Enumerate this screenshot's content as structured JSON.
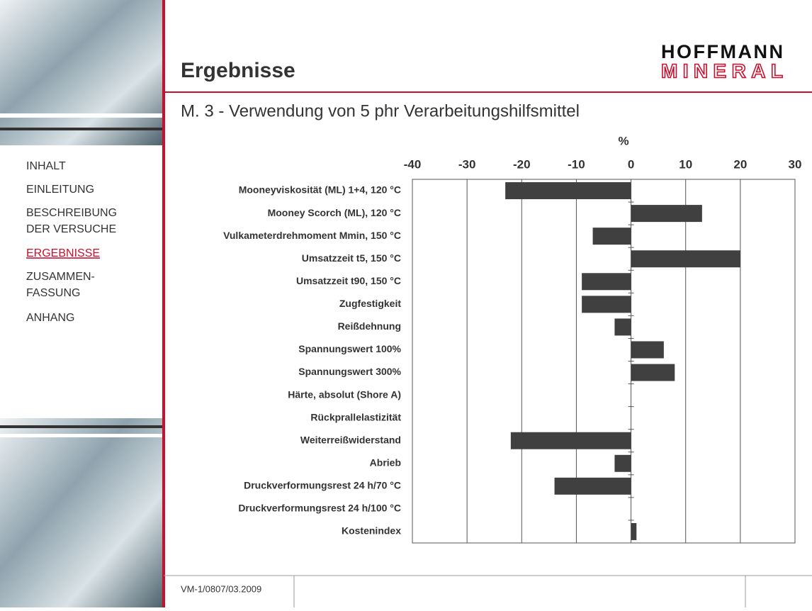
{
  "header": {
    "title": "Ergebnisse",
    "logo_top": "HOFFMANN",
    "logo_bottom": "MINERAL"
  },
  "nav": [
    [
      "INHALT"
    ],
    [
      "EINLEITUNG"
    ],
    [
      "BESCHREIBUNG",
      "DER VERSUCHE"
    ],
    [
      "ERGEBNISSE"
    ],
    [
      "ZUSAMMEN-",
      "FASSUNG"
    ],
    [
      "ANHANG"
    ]
  ],
  "footer": {
    "code": "VM-1/0807/03.2009"
  },
  "chart_data": {
    "type": "bar",
    "orientation": "horizontal",
    "title": "M. 3 - Verwendung von 5 phr Verarbeitungshilfsmittel",
    "x_label": "%",
    "categories": [
      "Mooneyviskosität (ML) 1+4, 120 °C",
      "Mooney Scorch (ML), 120 °C",
      "Vulkameterdrehmoment Mmin, 150 °C",
      "Umsatzzeit t5, 150 °C",
      "Umsatzzeit t90, 150 °C",
      "Zugfestigkeit",
      "Reißdehnung",
      "Spannungswert 100%",
      "Spannungswert 300%",
      "Härte, absolut (Shore A)",
      "Rückprallelastizität",
      "Weiterreißwiderstand",
      "Abrieb",
      "Druckverformungsrest 24 h/70 °C",
      "Druckverformungsrest 24 h/100 °C",
      "Kostenindex"
    ],
    "values": [
      -23,
      13,
      -7,
      20,
      -9,
      -9,
      -3,
      6,
      8,
      0,
      0,
      -22,
      -3,
      -14,
      0,
      1
    ],
    "color": "#404040",
    "xlim": [
      -40,
      30
    ],
    "xticks": [
      -40,
      -30,
      -20,
      -10,
      0,
      10,
      20,
      30
    ],
    "grid": true
  }
}
